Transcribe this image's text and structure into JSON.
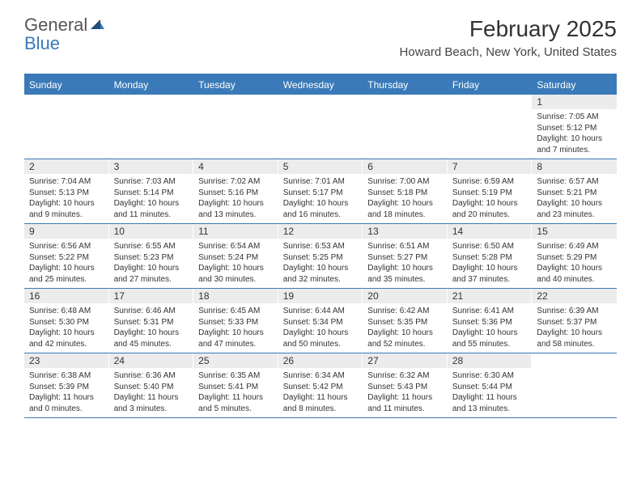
{
  "brand": {
    "part1": "General",
    "part2": "Blue"
  },
  "title": "February 2025",
  "location": "Howard Beach, New York, United States",
  "colors": {
    "accent": "#3a7ab8",
    "header_bg": "#3a7ab8",
    "daynum_bg": "#ececec",
    "text": "#333333",
    "background": "#ffffff"
  },
  "day_names": [
    "Sunday",
    "Monday",
    "Tuesday",
    "Wednesday",
    "Thursday",
    "Friday",
    "Saturday"
  ],
  "weeks": [
    [
      null,
      null,
      null,
      null,
      null,
      null,
      {
        "n": "1",
        "sr": "Sunrise: 7:05 AM",
        "ss": "Sunset: 5:12 PM",
        "dl1": "Daylight: 10 hours",
        "dl2": "and 7 minutes."
      }
    ],
    [
      {
        "n": "2",
        "sr": "Sunrise: 7:04 AM",
        "ss": "Sunset: 5:13 PM",
        "dl1": "Daylight: 10 hours",
        "dl2": "and 9 minutes."
      },
      {
        "n": "3",
        "sr": "Sunrise: 7:03 AM",
        "ss": "Sunset: 5:14 PM",
        "dl1": "Daylight: 10 hours",
        "dl2": "and 11 minutes."
      },
      {
        "n": "4",
        "sr": "Sunrise: 7:02 AM",
        "ss": "Sunset: 5:16 PM",
        "dl1": "Daylight: 10 hours",
        "dl2": "and 13 minutes."
      },
      {
        "n": "5",
        "sr": "Sunrise: 7:01 AM",
        "ss": "Sunset: 5:17 PM",
        "dl1": "Daylight: 10 hours",
        "dl2": "and 16 minutes."
      },
      {
        "n": "6",
        "sr": "Sunrise: 7:00 AM",
        "ss": "Sunset: 5:18 PM",
        "dl1": "Daylight: 10 hours",
        "dl2": "and 18 minutes."
      },
      {
        "n": "7",
        "sr": "Sunrise: 6:59 AM",
        "ss": "Sunset: 5:19 PM",
        "dl1": "Daylight: 10 hours",
        "dl2": "and 20 minutes."
      },
      {
        "n": "8",
        "sr": "Sunrise: 6:57 AM",
        "ss": "Sunset: 5:21 PM",
        "dl1": "Daylight: 10 hours",
        "dl2": "and 23 minutes."
      }
    ],
    [
      {
        "n": "9",
        "sr": "Sunrise: 6:56 AM",
        "ss": "Sunset: 5:22 PM",
        "dl1": "Daylight: 10 hours",
        "dl2": "and 25 minutes."
      },
      {
        "n": "10",
        "sr": "Sunrise: 6:55 AM",
        "ss": "Sunset: 5:23 PM",
        "dl1": "Daylight: 10 hours",
        "dl2": "and 27 minutes."
      },
      {
        "n": "11",
        "sr": "Sunrise: 6:54 AM",
        "ss": "Sunset: 5:24 PM",
        "dl1": "Daylight: 10 hours",
        "dl2": "and 30 minutes."
      },
      {
        "n": "12",
        "sr": "Sunrise: 6:53 AM",
        "ss": "Sunset: 5:25 PM",
        "dl1": "Daylight: 10 hours",
        "dl2": "and 32 minutes."
      },
      {
        "n": "13",
        "sr": "Sunrise: 6:51 AM",
        "ss": "Sunset: 5:27 PM",
        "dl1": "Daylight: 10 hours",
        "dl2": "and 35 minutes."
      },
      {
        "n": "14",
        "sr": "Sunrise: 6:50 AM",
        "ss": "Sunset: 5:28 PM",
        "dl1": "Daylight: 10 hours",
        "dl2": "and 37 minutes."
      },
      {
        "n": "15",
        "sr": "Sunrise: 6:49 AM",
        "ss": "Sunset: 5:29 PM",
        "dl1": "Daylight: 10 hours",
        "dl2": "and 40 minutes."
      }
    ],
    [
      {
        "n": "16",
        "sr": "Sunrise: 6:48 AM",
        "ss": "Sunset: 5:30 PM",
        "dl1": "Daylight: 10 hours",
        "dl2": "and 42 minutes."
      },
      {
        "n": "17",
        "sr": "Sunrise: 6:46 AM",
        "ss": "Sunset: 5:31 PM",
        "dl1": "Daylight: 10 hours",
        "dl2": "and 45 minutes."
      },
      {
        "n": "18",
        "sr": "Sunrise: 6:45 AM",
        "ss": "Sunset: 5:33 PM",
        "dl1": "Daylight: 10 hours",
        "dl2": "and 47 minutes."
      },
      {
        "n": "19",
        "sr": "Sunrise: 6:44 AM",
        "ss": "Sunset: 5:34 PM",
        "dl1": "Daylight: 10 hours",
        "dl2": "and 50 minutes."
      },
      {
        "n": "20",
        "sr": "Sunrise: 6:42 AM",
        "ss": "Sunset: 5:35 PM",
        "dl1": "Daylight: 10 hours",
        "dl2": "and 52 minutes."
      },
      {
        "n": "21",
        "sr": "Sunrise: 6:41 AM",
        "ss": "Sunset: 5:36 PM",
        "dl1": "Daylight: 10 hours",
        "dl2": "and 55 minutes."
      },
      {
        "n": "22",
        "sr": "Sunrise: 6:39 AM",
        "ss": "Sunset: 5:37 PM",
        "dl1": "Daylight: 10 hours",
        "dl2": "and 58 minutes."
      }
    ],
    [
      {
        "n": "23",
        "sr": "Sunrise: 6:38 AM",
        "ss": "Sunset: 5:39 PM",
        "dl1": "Daylight: 11 hours",
        "dl2": "and 0 minutes."
      },
      {
        "n": "24",
        "sr": "Sunrise: 6:36 AM",
        "ss": "Sunset: 5:40 PM",
        "dl1": "Daylight: 11 hours",
        "dl2": "and 3 minutes."
      },
      {
        "n": "25",
        "sr": "Sunrise: 6:35 AM",
        "ss": "Sunset: 5:41 PM",
        "dl1": "Daylight: 11 hours",
        "dl2": "and 5 minutes."
      },
      {
        "n": "26",
        "sr": "Sunrise: 6:34 AM",
        "ss": "Sunset: 5:42 PM",
        "dl1": "Daylight: 11 hours",
        "dl2": "and 8 minutes."
      },
      {
        "n": "27",
        "sr": "Sunrise: 6:32 AM",
        "ss": "Sunset: 5:43 PM",
        "dl1": "Daylight: 11 hours",
        "dl2": "and 11 minutes."
      },
      {
        "n": "28",
        "sr": "Sunrise: 6:30 AM",
        "ss": "Sunset: 5:44 PM",
        "dl1": "Daylight: 11 hours",
        "dl2": "and 13 minutes."
      },
      null
    ]
  ]
}
